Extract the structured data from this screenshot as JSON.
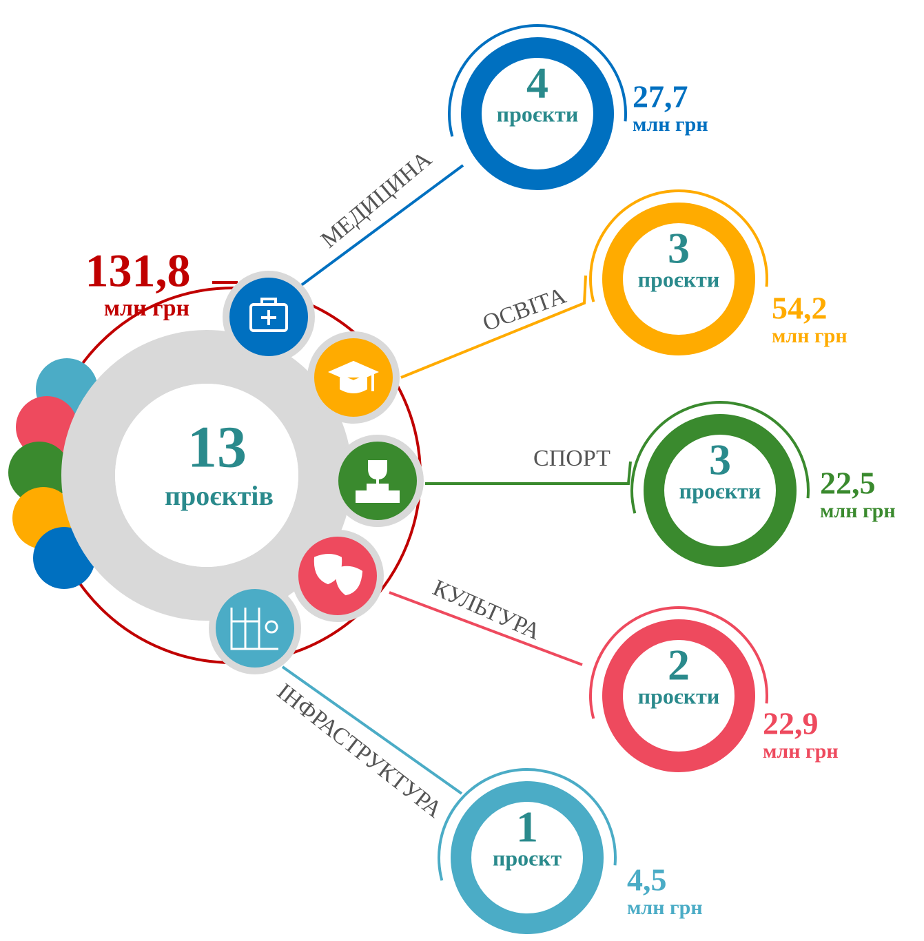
{
  "total": {
    "amount": "131,8",
    "unit": "млн грн"
  },
  "center": {
    "count": "13",
    "label": "проєктів"
  },
  "branches": [
    {
      "name": "МЕДИЦИНА",
      "count": "4",
      "count_label": "проєкти",
      "amount": "27,7",
      "unit": "млн грн"
    },
    {
      "name": "ОСВІТА",
      "count": "3",
      "count_label": "проєкти",
      "amount": "54,2",
      "unit": "млн грн"
    },
    {
      "name": "СПОРТ",
      "count": "3",
      "count_label": "проєкти",
      "amount": "22,5",
      "unit": "млн грн"
    },
    {
      "name": "КУЛЬТУРА",
      "count": "2",
      "count_label": "проєкти",
      "amount": "22,9",
      "unit": "млн грн"
    },
    {
      "name": "ІНФРАСТРУКТУРА",
      "count": "1",
      "count_label": "проєкт",
      "amount": "4,5",
      "unit": "млн грн"
    }
  ]
}
